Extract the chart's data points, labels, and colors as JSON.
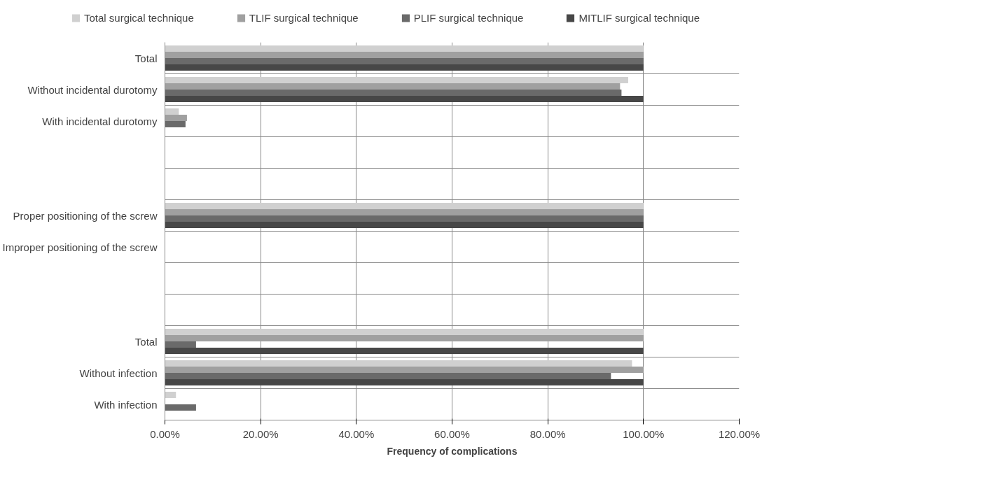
{
  "chart_data": {
    "type": "bar",
    "orientation": "horizontal",
    "xlabel": "Frequency of complications",
    "categories": [
      "Total",
      "Without incidental durotomy",
      "With incidental durotomy",
      null,
      null,
      "Proper positioning of the screw",
      "Improper positioning of the screw",
      null,
      null,
      "Total",
      "Without infection",
      "With infection"
    ],
    "series": [
      {
        "name": "Total surgical technique",
        "color": "#d0d0d0",
        "values": [
          100,
          96.8,
          2.9,
          null,
          null,
          100,
          0,
          null,
          null,
          100,
          97.6,
          2.3
        ]
      },
      {
        "name": "TLIF surgical technique",
        "color": "#a0a0a0",
        "values": [
          100,
          95.1,
          4.6,
          null,
          null,
          100,
          0,
          null,
          null,
          100,
          100,
          0
        ]
      },
      {
        "name": "PLIF surgical technique",
        "color": "#6a6a6a",
        "values": [
          100,
          95.4,
          4.3,
          null,
          null,
          100,
          0,
          null,
          null,
          6.5,
          93.2,
          6.5
        ]
      },
      {
        "name": "MITLIF surgical technique",
        "color": "#474747",
        "values": [
          100,
          100,
          0,
          null,
          null,
          100,
          0,
          null,
          null,
          100,
          100,
          0
        ]
      }
    ],
    "xlim": [
      0,
      120
    ],
    "xticks": [
      {
        "value": 0,
        "label": "0.00%"
      },
      {
        "value": 20,
        "label": "20.00%"
      },
      {
        "value": 40,
        "label": "40.00%"
      },
      {
        "value": 60,
        "label": "60.00%"
      },
      {
        "value": 80,
        "label": "80.00%"
      },
      {
        "value": 100,
        "label": "100.00%"
      },
      {
        "value": 120,
        "label": "120.00%"
      }
    ],
    "grid": true,
    "legend": "top"
  }
}
